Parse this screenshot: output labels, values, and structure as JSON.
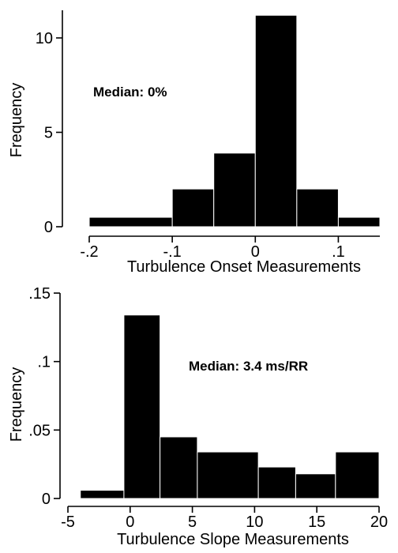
{
  "chart_data": [
    {
      "type": "bar",
      "subtype": "histogram",
      "title": "",
      "xlabel": "Turbulence Onset Measurements",
      "ylabel": "Frequency",
      "annotation": "Median: 0%",
      "xlim": [
        -0.2,
        0.15
      ],
      "ylim": [
        0,
        11
      ],
      "x_ticks": [
        -0.2,
        -0.1,
        0,
        0.1
      ],
      "x_tick_labels": [
        "-.2",
        "-.1",
        "0",
        ".1"
      ],
      "y_ticks": [
        0,
        5,
        10
      ],
      "y_tick_labels": [
        "0",
        "5",
        "10"
      ],
      "bins": [
        {
          "x0": -0.2,
          "x1": -0.1,
          "value": 0.5
        },
        {
          "x0": -0.1,
          "x1": -0.05,
          "value": 2
        },
        {
          "x0": -0.05,
          "x1": 0,
          "value": 3.9
        },
        {
          "x0": 0,
          "x1": 0.05,
          "value": 11.2
        },
        {
          "x0": 0.05,
          "x1": 0.1,
          "value": 2
        },
        {
          "x0": 0.1,
          "x1": 0.15,
          "value": 0.5
        }
      ]
    },
    {
      "type": "bar",
      "subtype": "histogram",
      "title": "",
      "xlabel": "Turbulence Slope Measurements",
      "ylabel": "Frequency",
      "annotation": "Median: 3.4 ms/RR",
      "xlim": [
        -5,
        20
      ],
      "ylim": [
        0,
        0.15
      ],
      "x_ticks": [
        -5,
        0,
        5,
        10,
        15,
        20
      ],
      "x_tick_labels": [
        "-5",
        "0",
        "5",
        "10",
        "15",
        "20"
      ],
      "y_ticks": [
        0,
        0.05,
        0.1,
        0.15
      ],
      "y_tick_labels": [
        "0",
        ".05",
        ".1",
        ".15"
      ],
      "bins": [
        {
          "x0": -4,
          "x1": -0.5,
          "value": 0.006
        },
        {
          "x0": -0.5,
          "x1": 2.4,
          "value": 0.134
        },
        {
          "x0": 2.4,
          "x1": 5.4,
          "value": 0.045
        },
        {
          "x0": 5.4,
          "x1": 10.3,
          "value": 0.034
        },
        {
          "x0": 10.3,
          "x1": 13.3,
          "value": 0.023
        },
        {
          "x0": 13.3,
          "x1": 16.5,
          "value": 0.018
        },
        {
          "x0": 16.5,
          "x1": 20,
          "value": 0.034
        }
      ]
    }
  ]
}
